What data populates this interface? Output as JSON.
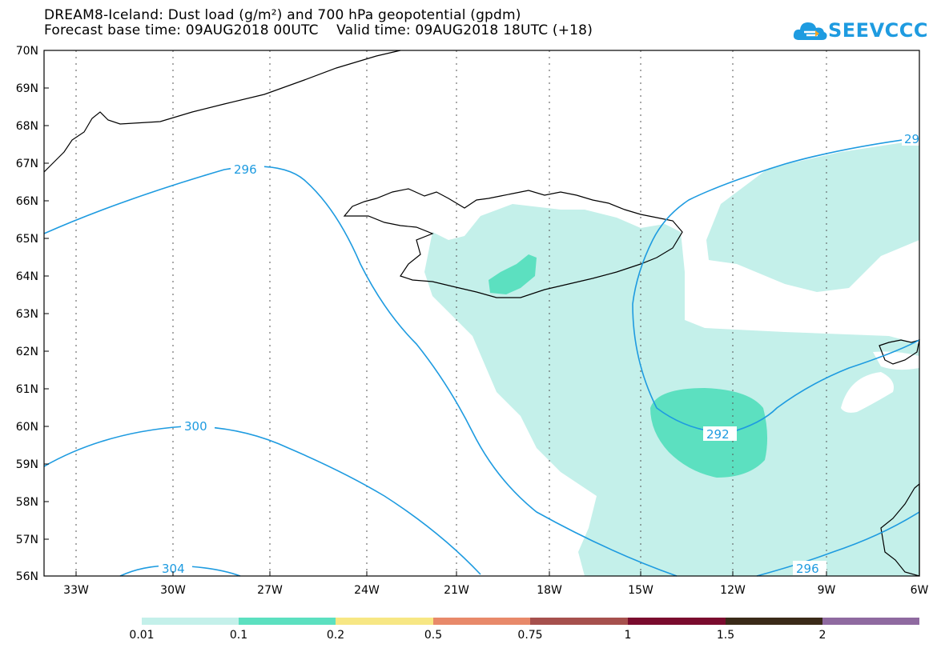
{
  "header": {
    "title_line1": "DREAM8-Iceland: Dust load (g/m²) and 700 hPa geopotential (gpdm)",
    "title_line2": "Forecast base time: 09AUG2018 00UTC    Valid time: 09AUG2018 18UTC (+18)"
  },
  "logo": {
    "text": "SEEVCCC",
    "icon": "cloud-icon",
    "color": "#1e9be0"
  },
  "map": {
    "lat_labels": [
      "70N",
      "69N",
      "68N",
      "67N",
      "66N",
      "65N",
      "64N",
      "63N",
      "62N",
      "61N",
      "60N",
      "59N",
      "58N",
      "57N",
      "56N"
    ],
    "lon_labels": [
      "33W",
      "30W",
      "27W",
      "24W",
      "21W",
      "18W",
      "15W",
      "12W",
      "9W",
      "6W"
    ],
    "contour_labels": [
      "296",
      "300",
      "304",
      "292",
      "296",
      "29"
    ],
    "contour_color": "#1e9be0",
    "coast_color": "#000000"
  },
  "colorbar": {
    "colors": [
      "#c4f0ea",
      "#5ce0c0",
      "#f7e784",
      "#e8896a",
      "#a6504d",
      "#7a0b2e",
      "#3a2a18",
      "#8f6aa0"
    ],
    "labels": [
      "0.01",
      "0.1",
      "0.2",
      "0.5",
      "0.75",
      "1",
      "1.5",
      "2"
    ]
  }
}
